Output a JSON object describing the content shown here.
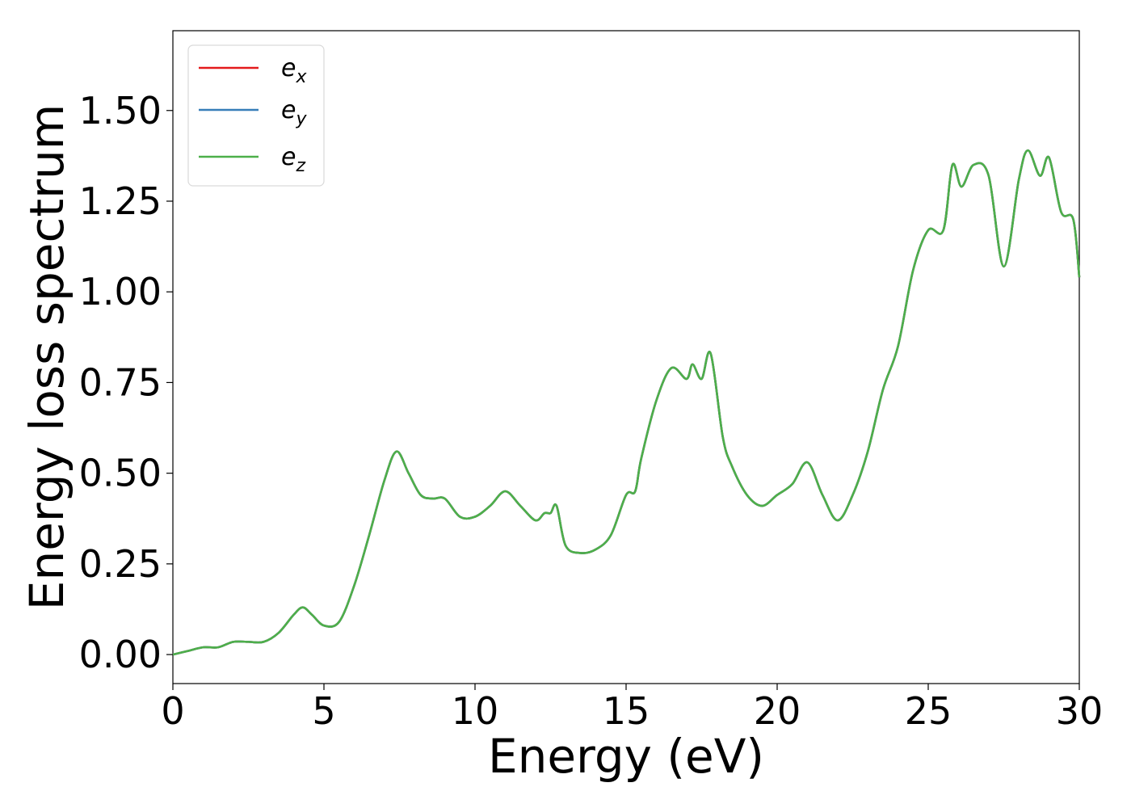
{
  "colors": {
    "ex": "#e41a1c",
    "ey": "#377eb8",
    "ez": "#4daf4a",
    "frame": "#000000",
    "legend_border": "#d9d9d9"
  },
  "chart_data": {
    "type": "line",
    "title": "",
    "xlabel": "Energy (eV)",
    "ylabel": "Energy loss spectrum",
    "xlim": [
      0,
      30
    ],
    "ylim": [
      -0.08,
      1.72
    ],
    "xticks": [
      0,
      5,
      10,
      15,
      20,
      25,
      30
    ],
    "xtick_labels": [
      "0",
      "5",
      "10",
      "15",
      "20",
      "25",
      "30"
    ],
    "yticks": [
      0.0,
      0.25,
      0.5,
      0.75,
      1.0,
      1.25,
      1.5
    ],
    "ytick_labels": [
      "0.00",
      "0.25",
      "0.50",
      "0.75",
      "1.00",
      "1.25",
      "1.50"
    ],
    "grid": false,
    "legend_position": "top-left",
    "x": [
      0,
      0.5,
      1.0,
      1.5,
      2.0,
      2.5,
      3.0,
      3.5,
      4.0,
      4.3,
      4.6,
      5.0,
      5.5,
      6.0,
      6.5,
      7.0,
      7.4,
      7.8,
      8.2,
      8.6,
      9.0,
      9.5,
      10.0,
      10.5,
      11.0,
      11.5,
      12.0,
      12.3,
      12.5,
      12.7,
      13.0,
      13.5,
      14.0,
      14.5,
      15.0,
      15.3,
      15.5,
      16.0,
      16.5,
      17.0,
      17.2,
      17.5,
      17.8,
      18.2,
      18.5,
      19.0,
      19.5,
      20.0,
      20.5,
      21.0,
      21.5,
      22.0,
      22.5,
      23.0,
      23.5,
      24.0,
      24.5,
      25.0,
      25.5,
      25.8,
      26.1,
      26.5,
      27.0,
      27.5,
      28.0,
      28.3,
      28.7,
      29.0,
      29.4,
      29.8,
      30.0
    ],
    "series": [
      {
        "name": "e_x",
        "color": "#e41a1c",
        "values": [
          0.0,
          0.01,
          0.02,
          0.02,
          0.035,
          0.035,
          0.035,
          0.06,
          0.11,
          0.13,
          0.11,
          0.08,
          0.09,
          0.19,
          0.33,
          0.48,
          0.56,
          0.5,
          0.44,
          0.43,
          0.43,
          0.38,
          0.38,
          0.41,
          0.45,
          0.41,
          0.37,
          0.39,
          0.39,
          0.41,
          0.3,
          0.28,
          0.29,
          0.33,
          0.44,
          0.45,
          0.54,
          0.7,
          0.79,
          0.76,
          0.8,
          0.76,
          0.83,
          0.6,
          0.52,
          0.44,
          0.41,
          0.44,
          0.47,
          0.53,
          0.44,
          0.37,
          0.44,
          0.56,
          0.73,
          0.85,
          1.06,
          1.17,
          1.17,
          1.35,
          1.29,
          1.35,
          1.32,
          1.07,
          1.31,
          1.39,
          1.32,
          1.37,
          1.22,
          1.2,
          1.04
        ]
      },
      {
        "name": "e_y",
        "color": "#377eb8",
        "values": [
          0.0,
          0.01,
          0.02,
          0.02,
          0.035,
          0.035,
          0.035,
          0.06,
          0.11,
          0.13,
          0.11,
          0.08,
          0.09,
          0.19,
          0.33,
          0.48,
          0.56,
          0.5,
          0.44,
          0.43,
          0.43,
          0.38,
          0.38,
          0.41,
          0.45,
          0.41,
          0.37,
          0.39,
          0.39,
          0.41,
          0.3,
          0.28,
          0.29,
          0.33,
          0.44,
          0.45,
          0.54,
          0.7,
          0.79,
          0.76,
          0.8,
          0.76,
          0.83,
          0.6,
          0.52,
          0.44,
          0.41,
          0.44,
          0.47,
          0.53,
          0.44,
          0.37,
          0.44,
          0.56,
          0.73,
          0.85,
          1.06,
          1.17,
          1.17,
          1.35,
          1.29,
          1.35,
          1.32,
          1.07,
          1.31,
          1.39,
          1.32,
          1.37,
          1.22,
          1.2,
          1.04
        ]
      },
      {
        "name": "e_z",
        "color": "#4daf4a",
        "values": [
          0.0,
          0.01,
          0.02,
          0.02,
          0.035,
          0.035,
          0.035,
          0.06,
          0.11,
          0.13,
          0.11,
          0.08,
          0.09,
          0.19,
          0.33,
          0.48,
          0.56,
          0.5,
          0.44,
          0.43,
          0.43,
          0.38,
          0.38,
          0.41,
          0.45,
          0.41,
          0.37,
          0.39,
          0.39,
          0.41,
          0.3,
          0.28,
          0.29,
          0.33,
          0.44,
          0.45,
          0.54,
          0.7,
          0.79,
          0.76,
          0.8,
          0.76,
          0.83,
          0.6,
          0.52,
          0.44,
          0.41,
          0.44,
          0.47,
          0.53,
          0.44,
          0.37,
          0.44,
          0.56,
          0.73,
          0.85,
          1.06,
          1.17,
          1.17,
          1.35,
          1.29,
          1.35,
          1.32,
          1.07,
          1.31,
          1.39,
          1.32,
          1.37,
          1.22,
          1.2,
          1.04
        ]
      }
    ],
    "legend": [
      {
        "base": "e",
        "sub": "x",
        "color": "#e41a1c"
      },
      {
        "base": "e",
        "sub": "y",
        "color": "#377eb8"
      },
      {
        "base": "e",
        "sub": "z",
        "color": "#4daf4a"
      }
    ]
  }
}
